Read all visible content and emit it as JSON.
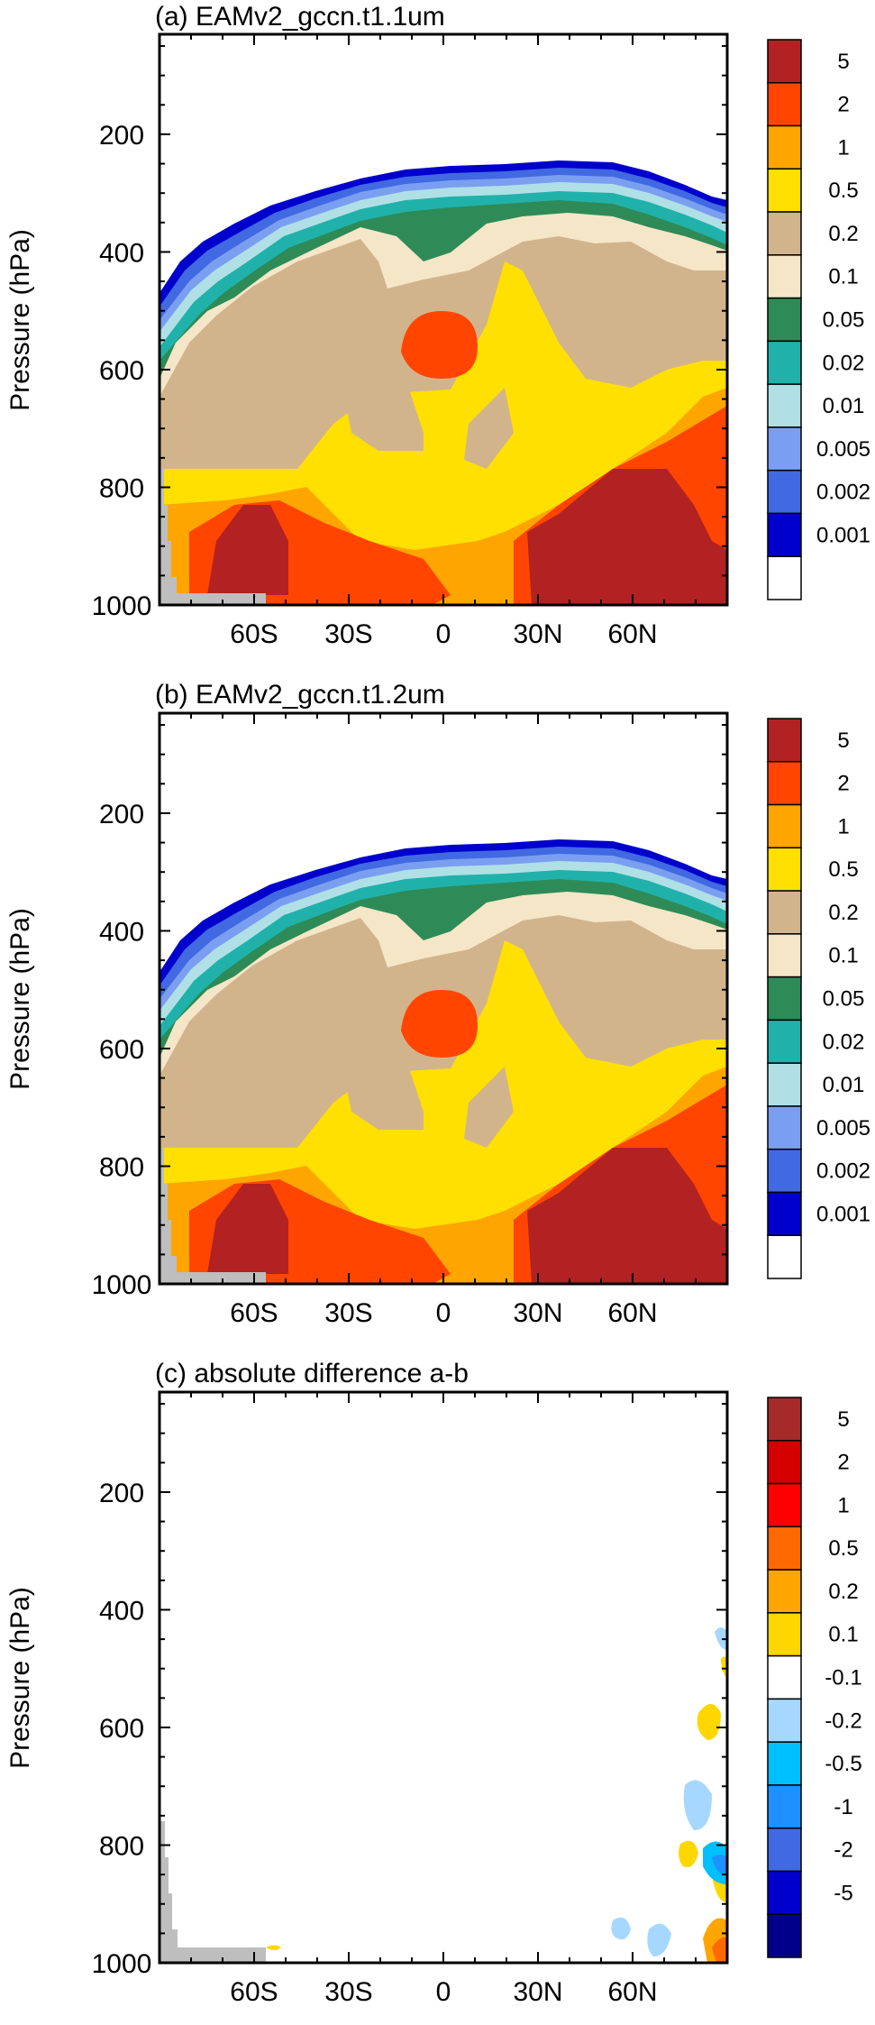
{
  "chart_data": [
    {
      "type": "heatmap",
      "title": "(a) EAMv2_gccn.t1.1um",
      "ylabel": "Pressure (hPa)",
      "xlabel": "",
      "xlim": [
        -90,
        90
      ],
      "ylim": [
        1000,
        30
      ],
      "x_ticks": [
        -60,
        -30,
        0,
        30,
        60
      ],
      "x_tick_labels": [
        "60S",
        "30S",
        "0",
        "30N",
        "60N"
      ],
      "y_ticks": [
        200,
        400,
        600,
        800,
        1000
      ],
      "y_tick_labels": [
        "200",
        "400",
        "600",
        "800",
        "1000"
      ],
      "colorbar": {
        "labels": [
          "5",
          "2",
          "1",
          "0.5",
          "0.2",
          "0.1",
          "0.05",
          "0.02",
          "0.01",
          "0.005",
          "0.002",
          "0.001"
        ],
        "colors": [
          "#b22222",
          "#ff4500",
          "#ffa500",
          "#ffe000",
          "#d2b48c",
          "#f5e6c8",
          "#2e8b57",
          "#20b2aa",
          "#b0e0e6",
          "#7b9ff0",
          "#4169e1",
          "#0000cd",
          "#ffffff"
        ]
      },
      "masked_color": "#bebebe"
    },
    {
      "type": "heatmap",
      "title": "(b) EAMv2_gccn.t1.2um",
      "ylabel": "Pressure (hPa)",
      "xlabel": "",
      "xlim": [
        -90,
        90
      ],
      "ylim": [
        1000,
        30
      ],
      "x_ticks": [
        -60,
        -30,
        0,
        30,
        60
      ],
      "x_tick_labels": [
        "60S",
        "30S",
        "0",
        "30N",
        "60N"
      ],
      "y_ticks": [
        200,
        400,
        600,
        800,
        1000
      ],
      "y_tick_labels": [
        "200",
        "400",
        "600",
        "800",
        "1000"
      ],
      "colorbar": {
        "labels": [
          "5",
          "2",
          "1",
          "0.5",
          "0.2",
          "0.1",
          "0.05",
          "0.02",
          "0.01",
          "0.005",
          "0.002",
          "0.001"
        ],
        "colors": [
          "#b22222",
          "#ff4500",
          "#ffa500",
          "#ffe000",
          "#d2b48c",
          "#f5e6c8",
          "#2e8b57",
          "#20b2aa",
          "#b0e0e6",
          "#7b9ff0",
          "#4169e1",
          "#0000cd",
          "#ffffff"
        ]
      },
      "masked_color": "#bebebe"
    },
    {
      "type": "heatmap",
      "title": "(c) absolute difference a-b",
      "ylabel": "Pressure (hPa)",
      "xlabel": "",
      "xlim": [
        -90,
        90
      ],
      "ylim": [
        1000,
        30
      ],
      "x_ticks": [
        -60,
        -30,
        0,
        30,
        60
      ],
      "x_tick_labels": [
        "60S",
        "30S",
        "0",
        "30N",
        "60N"
      ],
      "y_ticks": [
        200,
        400,
        600,
        800,
        1000
      ],
      "y_tick_labels": [
        "200",
        "400",
        "600",
        "800",
        "1000"
      ],
      "colorbar": {
        "labels": [
          "5",
          "2",
          "1",
          "0.5",
          "0.2",
          "0.1",
          "-0.1",
          "-0.2",
          "-0.5",
          "-1",
          "-2",
          "-5"
        ],
        "colors": [
          "#a52a2a",
          "#d40000",
          "#ff0000",
          "#ff6a00",
          "#ffa500",
          "#ffd700",
          "#ffffff",
          "#a6d8ff",
          "#00bfff",
          "#1e90ff",
          "#4169e1",
          "#0000cd",
          "#00008b"
        ]
      },
      "masked_color": "#bebebe"
    }
  ]
}
